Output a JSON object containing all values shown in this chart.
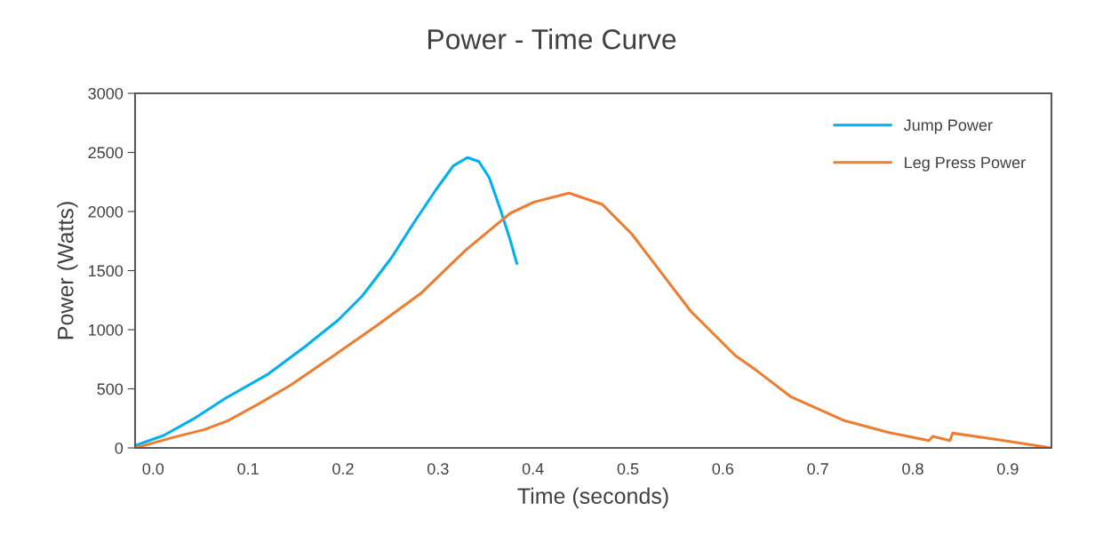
{
  "chart_data": {
    "type": "line",
    "title": "Power - Time Curve",
    "xlabel": "Time (seconds)",
    "ylabel": "Power (Watts)",
    "xlim": [
      -0.019,
      0.946
    ],
    "xticks": [
      {
        "value": 0,
        "label": "0.0"
      },
      0.1,
      0.2,
      0.3,
      0.4,
      0.5,
      0.6,
      0.7,
      0.8,
      0.9
    ],
    "ylim": [
      0,
      3000
    ],
    "yticks": [
      0,
      500,
      1000,
      1500,
      2000,
      2500,
      3000
    ],
    "grid": false,
    "legend": "top right",
    "marker": "none",
    "line_style": "solid",
    "series": [
      {
        "name": "Jump Power",
        "color": "#00b0f0",
        "x": [
          -0.019,
          0.011,
          0.042,
          0.076,
          0.12,
          0.16,
          0.195,
          0.22,
          0.232,
          0.251,
          0.276,
          0.298,
          0.316,
          0.331,
          0.343,
          0.354,
          0.366,
          0.376,
          0.383
        ],
        "values": [
          20,
          105,
          243,
          419,
          619,
          857,
          1083,
          1284,
          1408,
          1609,
          1923,
          2186,
          2386,
          2457,
          2423,
          2286,
          2010,
          1759,
          1559
        ]
      },
      {
        "name": "Leg Press Power",
        "color": "#ed7d31",
        "x": [
          -0.019,
          0.023,
          0.054,
          0.079,
          0.11,
          0.145,
          0.188,
          0.235,
          0.282,
          0.329,
          0.376,
          0.401,
          0.438,
          0.473,
          0.504,
          0.535,
          0.566,
          0.613,
          0.635,
          0.672,
          0.728,
          0.775,
          0.817,
          0.821,
          0.839,
          0.842,
          0.885,
          0.946
        ],
        "values": [
          0,
          93,
          155,
          231,
          368,
          532,
          769,
          1032,
          1308,
          1672,
          1985,
          2080,
          2156,
          2060,
          1810,
          1484,
          1158,
          782,
          657,
          431,
          231,
          130,
          62,
          98,
          62,
          125,
          75,
          0
        ]
      }
    ]
  }
}
